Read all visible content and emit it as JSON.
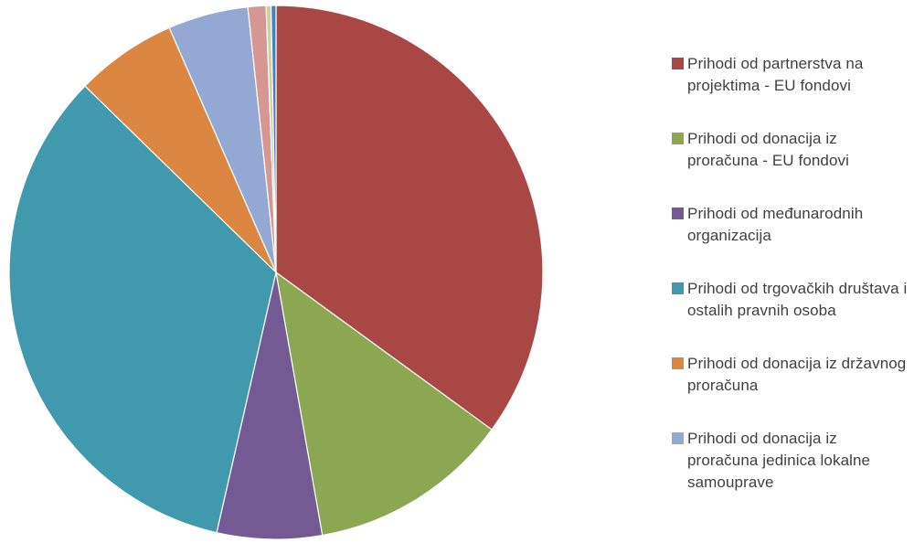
{
  "chart_data": {
    "type": "pie",
    "title": "",
    "legend_position": "right",
    "slices": [
      {
        "label": "Prihodi od partnerstva na projektima - EU fondovi",
        "value": 35.3,
        "color": "#A94745"
      },
      {
        "label": "Prihodi od donacija iz proračuna - EU fondovi",
        "value": 12.3,
        "color": "#8BA751"
      },
      {
        "label": "Prihodi od međunarodnih organizacija",
        "value": 6.4,
        "color": "#735A92"
      },
      {
        "label": "Prihodi od trgovačkih društava i ostalih pravnih osoba",
        "value": 34.0,
        "color": "#4199AE"
      },
      {
        "label": "Prihodi od donacija iz državnog proračuna",
        "value": 6.2,
        "color": "#DB8641"
      },
      {
        "label": "Prihodi od donacija iz proračuna jedinica lokalne samouprave",
        "value": 4.9,
        "color": "#93A9D3"
      },
      {
        "label": "",
        "value": 1.1,
        "color": "#D59694"
      },
      {
        "label": "",
        "value": 0.3,
        "color": "#C8D5A2"
      },
      {
        "label": "",
        "value": 0.3,
        "color": "#4A7EBB"
      }
    ]
  }
}
